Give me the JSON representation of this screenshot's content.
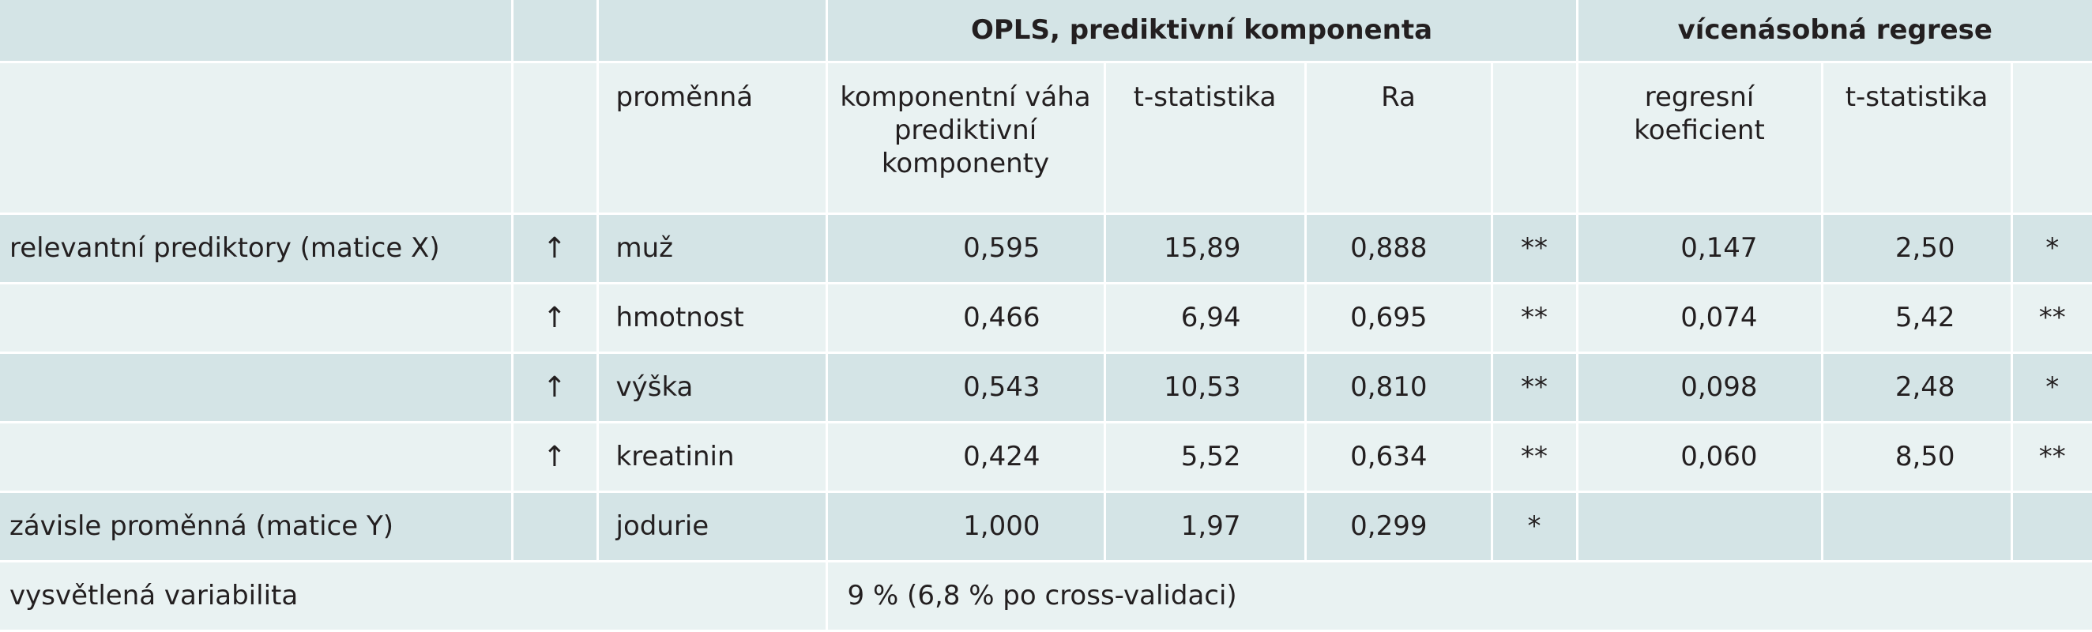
{
  "header": {
    "opls_title": "OPLS, prediktivní komponenta",
    "regression_title": "vícenásobná regrese"
  },
  "subheader": {
    "variable": "proměnná",
    "component_weight": "komponentní váha prediktivní komponenty",
    "t_stat_opls": "t-statistika",
    "ra": "Ra",
    "reg_coef": "regresní koeficient",
    "t_stat_reg": "t-statistika"
  },
  "rows": [
    {
      "group": "relevantní prediktory (matice X)",
      "arrow": "↑",
      "variable": "muž",
      "weight": "0,595",
      "t_opls": "15,89",
      "ra": "0,888",
      "sig_opls": "**",
      "coef": "0,147",
      "t_reg": "2,50",
      "sig_reg": "*"
    },
    {
      "group": "",
      "arrow": "↑",
      "variable": "hmotnost",
      "weight": "0,466",
      "t_opls": "6,94",
      "ra": "0,695",
      "sig_opls": "**",
      "coef": "0,074",
      "t_reg": "5,42",
      "sig_reg": "**"
    },
    {
      "group": "",
      "arrow": "↑",
      "variable": "výška",
      "weight": "0,543",
      "t_opls": "10,53",
      "ra": "0,810",
      "sig_opls": "**",
      "coef": "0,098",
      "t_reg": "2,48",
      "sig_reg": "*"
    },
    {
      "group": "",
      "arrow": "↑",
      "variable": "kreatinin",
      "weight": "0,424",
      "t_opls": "5,52",
      "ra": "0,634",
      "sig_opls": "**",
      "coef": "0,060",
      "t_reg": "8,50",
      "sig_reg": "**"
    },
    {
      "group": "závisle proměnná (matice Y)",
      "arrow": "",
      "variable": "jodurie",
      "weight": "1,000",
      "t_opls": "1,97",
      "ra": "0,299",
      "sig_opls": "*",
      "coef": "",
      "t_reg": "",
      "sig_reg": ""
    }
  ],
  "footer": {
    "label": "vysvětlená variabilita",
    "value": "9 % (6,8 % po cross-validaci)"
  }
}
